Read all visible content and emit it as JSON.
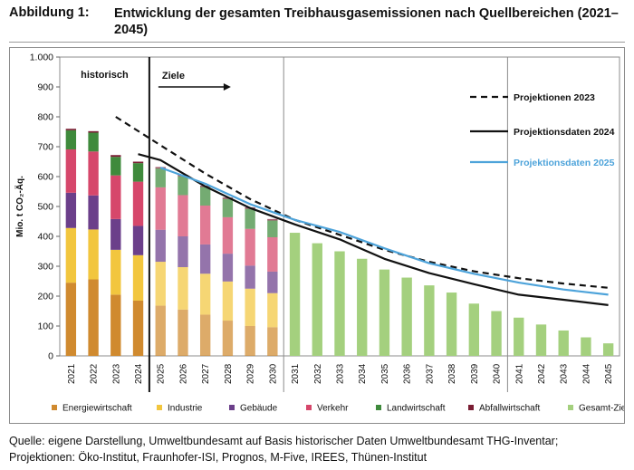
{
  "figure": {
    "label": "Abbildung 1:",
    "title": "Entwicklung der gesamten Treibhausgasemissionen nach Quellbereichen (2021–2045)"
  },
  "source": {
    "line1": "Quelle: eigene Darstellung, Umweltbundesamt auf Basis historischer Daten Umweltbundesamt THG-Inventar;",
    "line2": "Projektionen: Öko-Institut, Fraunhofer-ISI, Prognos, M-Five, IREES, Thünen-Institut"
  },
  "colors": {
    "Energiewirtschaft": "#d08a2f",
    "Industrie": "#f2c63e",
    "Gebäude": "#6b3f8a",
    "Verkehr": "#d6476b",
    "Landwirtschaft": "#3f8a3c",
    "Abfallwirtschaft": "#7a1d33",
    "Gesamt-Ziel": "#a4d07e",
    "proj2023": "#111111",
    "proj2024": "#111111",
    "proj2025": "#4da3da"
  },
  "chart_data": {
    "type": "bar",
    "ylabel": "Mio. t CO₂-Äq.",
    "ylim": [
      0,
      1000
    ],
    "yticks": [
      0,
      100,
      200,
      300,
      400,
      500,
      600,
      700,
      800,
      900,
      1000
    ],
    "ytick_labels": [
      "0",
      "100",
      "200",
      "300",
      "400",
      "500",
      "600",
      "700",
      "800",
      "900",
      "1.000"
    ],
    "categories": [
      "2021",
      "2022",
      "2023",
      "2024",
      "2025",
      "2026",
      "2027",
      "2028",
      "2029",
      "2030",
      "2031",
      "2032",
      "2033",
      "2034",
      "2035",
      "2036",
      "2037",
      "2038",
      "2039",
      "2040",
      "2041",
      "2042",
      "2043",
      "2044",
      "2045"
    ],
    "grid": "vertical separators at 2024/2025, 2030/2031, 2040/2041",
    "annotations": {
      "historical": "historisch",
      "targets": "Ziele"
    },
    "stacked_series": [
      {
        "name": "Energiewirtschaft",
        "years": [
          "2021",
          "2022",
          "2023",
          "2024",
          "2025",
          "2026",
          "2027",
          "2028",
          "2029",
          "2030"
        ],
        "values": [
          245,
          256,
          205,
          185,
          168,
          155,
          138,
          118,
          100,
          96
        ]
      },
      {
        "name": "Industrie",
        "years": [
          "2021",
          "2022",
          "2023",
          "2024",
          "2025",
          "2026",
          "2027",
          "2028",
          "2029",
          "2030"
        ],
        "values": [
          183,
          167,
          150,
          152,
          147,
          142,
          137,
          131,
          125,
          114
        ]
      },
      {
        "name": "Gebäude",
        "years": [
          "2021",
          "2022",
          "2023",
          "2024",
          "2025",
          "2026",
          "2027",
          "2028",
          "2029",
          "2030"
        ],
        "values": [
          118,
          114,
          103,
          98,
          107,
          103,
          98,
          93,
          77,
          72
        ]
      },
      {
        "name": "Verkehr",
        "years": [
          "2021",
          "2022",
          "2023",
          "2024",
          "2025",
          "2026",
          "2027",
          "2028",
          "2029",
          "2030"
        ],
        "values": [
          145,
          147,
          146,
          148,
          142,
          138,
          130,
          122,
          123,
          115
        ]
      },
      {
        "name": "Landwirtschaft",
        "years": [
          "2021",
          "2022",
          "2023",
          "2024",
          "2025",
          "2026",
          "2027",
          "2028",
          "2029",
          "2030"
        ],
        "values": [
          64,
          63,
          62,
          62,
          63,
          63,
          62,
          61,
          67,
          56
        ]
      },
      {
        "name": "Abfallwirtschaft",
        "years": [
          "2021",
          "2022",
          "2023",
          "2024",
          "2025",
          "2026",
          "2027",
          "2028",
          "2029",
          "2030"
        ],
        "values": [
          5,
          5,
          6,
          5,
          5,
          5,
          5,
          5,
          5,
          5
        ]
      }
    ],
    "target_series": {
      "name": "Gesamt-Ziel",
      "years": [
        "2031",
        "2032",
        "2033",
        "2034",
        "2035",
        "2036",
        "2037",
        "2038",
        "2039",
        "2040",
        "2041",
        "2042",
        "2043",
        "2044",
        "2045"
      ],
      "values": [
        412,
        377,
        350,
        325,
        289,
        262,
        236,
        212,
        175,
        150,
        128,
        105,
        85,
        62,
        42
      ]
    },
    "line_series": [
      {
        "name": "Projektionen 2023",
        "style": "dashed",
        "years": [
          "2023",
          "2025",
          "2027",
          "2029",
          "2031",
          "2033",
          "2035",
          "2037",
          "2039",
          "2041",
          "2043",
          "2045"
        ],
        "values": [
          800,
          705,
          610,
          525,
          455,
          405,
          355,
          315,
          283,
          260,
          242,
          228
        ]
      },
      {
        "name": "Projektionsdaten 2024",
        "style": "solid",
        "years": [
          "2024",
          "2025",
          "2027",
          "2029",
          "2031",
          "2033",
          "2035",
          "2037",
          "2039",
          "2041",
          "2043",
          "2045"
        ],
        "values": [
          675,
          655,
          567,
          495,
          440,
          390,
          325,
          277,
          240,
          205,
          188,
          170
        ]
      },
      {
        "name": "Projektionsdaten 2025",
        "style": "solid",
        "years": [
          "2025",
          "2027",
          "2029",
          "2031",
          "2033",
          "2035",
          "2037",
          "2039",
          "2041",
          "2043",
          "2045"
        ],
        "values": [
          630,
          576,
          508,
          455,
          415,
          360,
          310,
          275,
          245,
          222,
          205
        ]
      }
    ],
    "legend": {
      "placement": "bottom",
      "items": [
        "Energiewirtschaft",
        "Industrie",
        "Gebäude",
        "Verkehr",
        "Landwirtschaft",
        "Abfallwirtschaft",
        "Gesamt-Ziel"
      ]
    },
    "line_legend": {
      "placement": "top-right",
      "items": [
        "Projektionen 2023",
        "Projektionsdaten 2024",
        "Projektionsdaten 2025"
      ]
    }
  }
}
